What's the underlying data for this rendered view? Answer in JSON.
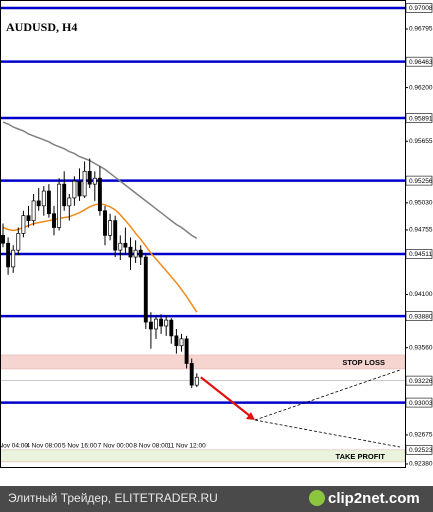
{
  "chart_data": {
    "type": "candlestick",
    "title": "AUDUSD, H4",
    "categories": [
      null,
      null,
      "Nov 04:00",
      null,
      null,
      null,
      null,
      null,
      "4 Nov 08:00",
      null,
      null,
      null,
      null,
      null,
      null,
      "5 Nov 16:00",
      null,
      null,
      null,
      null,
      null,
      null,
      "7 Nov 00:00",
      null,
      null,
      null,
      null,
      null,
      null,
      "8 Nov 08:00",
      null,
      null,
      null,
      null,
      null,
      null,
      "11 Nov 12:00",
      null,
      null
    ],
    "open": [
      0.947,
      0.9462,
      0.9438,
      0.9455,
      0.9472,
      0.949,
      0.9485,
      0.9505,
      0.95,
      0.9515,
      0.9492,
      0.9478,
      0.9522,
      0.95,
      0.9508,
      0.9525,
      0.951,
      0.9535,
      0.9522,
      0.9528,
      0.9495,
      0.947,
      0.9485,
      0.9455,
      0.9462,
      0.9458,
      0.9448,
      0.9455,
      0.9448,
      0.9382,
      0.9375,
      0.9385,
      0.9378,
      0.9384,
      0.9368,
      0.9358,
      0.9365,
      0.934,
      0.9318
    ],
    "high": [
      0.9482,
      0.9468,
      0.946,
      0.9478,
      0.9495,
      0.95,
      0.9512,
      0.9518,
      0.952,
      0.9522,
      0.95,
      0.9528,
      0.9535,
      0.9512,
      0.953,
      0.9538,
      0.9545,
      0.9548,
      0.9535,
      0.954,
      0.95,
      0.9492,
      0.949,
      0.947,
      0.9478,
      0.9468,
      0.9465,
      0.946,
      0.9452,
      0.9392,
      0.9388,
      0.939,
      0.9388,
      0.9386,
      0.9375,
      0.937,
      0.9368,
      0.9345,
      0.933
    ],
    "low": [
      0.9458,
      0.943,
      0.9432,
      0.945,
      0.9468,
      0.9478,
      0.948,
      0.9495,
      0.949,
      0.9488,
      0.947,
      0.9475,
      0.9495,
      0.9485,
      0.95,
      0.9505,
      0.9508,
      0.9518,
      0.9505,
      0.949,
      0.946,
      0.9465,
      0.9448,
      0.9445,
      0.945,
      0.9435,
      0.9442,
      0.944,
      0.9375,
      0.9355,
      0.9365,
      0.937,
      0.9368,
      0.936,
      0.935,
      0.9352,
      0.9335,
      0.9315,
      0.9316
    ],
    "close": [
      0.9462,
      0.9438,
      0.9455,
      0.9472,
      0.949,
      0.9485,
      0.9505,
      0.95,
      0.9515,
      0.9492,
      0.9478,
      0.9522,
      0.95,
      0.9508,
      0.9525,
      0.951,
      0.9535,
      0.9522,
      0.9528,
      0.9495,
      0.947,
      0.9485,
      0.9455,
      0.9462,
      0.9458,
      0.9448,
      0.9455,
      0.9448,
      0.9382,
      0.9375,
      0.9385,
      0.9378,
      0.9384,
      0.9368,
      0.9358,
      0.9365,
      0.934,
      0.9318,
      0.9326
    ],
    "series": [
      {
        "color": "#808080",
        "values": [
          0.9585,
          0.9583,
          0.958,
          0.9578,
          0.9576,
          0.9573,
          0.9571,
          0.9569,
          0.9567,
          0.9565,
          0.9562,
          0.956,
          0.9558,
          0.9555,
          0.9553,
          0.955,
          0.9548,
          0.9546,
          0.9543,
          0.954,
          0.9537,
          0.9533,
          0.9529,
          0.9525,
          0.9521,
          0.9517,
          0.9513,
          0.9509,
          0.9505,
          0.9501,
          0.9497,
          0.9493,
          0.9489,
          0.9485,
          0.9481,
          0.9478,
          0.9474,
          0.947,
          0.9467
        ]
      },
      {
        "color": "#f08a1c",
        "values": [
          0.9478,
          0.9476,
          0.9475,
          0.9476,
          0.9478,
          0.948,
          0.9482,
          0.9483,
          0.9484,
          0.9485,
          0.9486,
          0.9487,
          0.9488,
          0.9489,
          0.9491,
          0.9493,
          0.9496,
          0.9499,
          0.9501,
          0.9502,
          0.9501,
          0.9499,
          0.9496,
          0.9491,
          0.9485,
          0.9479,
          0.9472,
          0.9466,
          0.9459,
          0.9452,
          0.9446,
          0.944,
          0.9434,
          0.9428,
          0.9422,
          0.9415,
          0.9408,
          0.94,
          0.9392
        ]
      }
    ],
    "ylim": [
      0.92339,
      0.97089
    ],
    "yticks": [
      {
        "value": 0.96795,
        "label": "0.96795"
      },
      {
        "value": 0.962,
        "label": "0.96200"
      },
      {
        "value": 0.95655,
        "label": "0.95655"
      },
      {
        "value": 0.9503,
        "label": "0.95030"
      },
      {
        "value": 0.94755,
        "label": "0.94755"
      },
      {
        "value": 0.941,
        "label": "0.94100"
      },
      {
        "value": 0.9356,
        "label": "0.93560"
      },
      {
        "value": 0.92675,
        "label": "0.92675"
      },
      {
        "value": 0.9238,
        "label": "0.92380"
      }
    ],
    "levels": [
      0.97008,
      0.96463,
      0.95891,
      0.95256,
      0.94511,
      {
        "value": 0.9388,
        "label": "0.93880"
      },
      0.93003
    ],
    "level_color": "#0000c8",
    "current_price": 0.93226,
    "stop_loss": {
      "label": "STOP LOSS",
      "range": [
        0.93344,
        0.93486
      ],
      "color": "#f6d4d0"
    },
    "take_profit": {
      "label": "TAKE PROFIT",
      "range": [
        0.92401,
        0.92523
      ],
      "color": "#eaf3dc"
    },
    "forecast": {
      "arrow_end": 0.92826,
      "upper": 0.93334,
      "lower": 0.92552,
      "arrow_color": "#e01010"
    }
  },
  "footer": {
    "left": "Элитный Трейдер, ELITETRADER.RU",
    "right": "clip2net.com"
  }
}
